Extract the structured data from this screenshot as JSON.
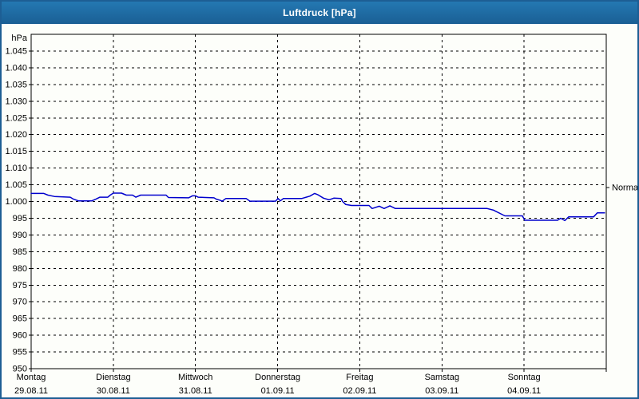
{
  "window": {
    "title": "Luftdruck [hPa]"
  },
  "colors": {
    "titlebar_top": "#2478b2",
    "titlebar_bottom": "#1a5f94",
    "window_border": "#1d5e94",
    "background": "#fdfefa",
    "grid": "#000000",
    "text": "#000000",
    "title_text": "#ffffff",
    "series_line": "#0000cd"
  },
  "chart_data": {
    "type": "line",
    "title": "Luftdruck [hPa]",
    "y_axis": {
      "unit_label": "hPa",
      "axis_min": 950,
      "axis_max": 1050,
      "tick_step": 5,
      "ticks": [
        {
          "value": 1045,
          "label": "1.045"
        },
        {
          "value": 1040,
          "label": "1.040"
        },
        {
          "value": 1035,
          "label": "1.035"
        },
        {
          "value": 1030,
          "label": "1.030"
        },
        {
          "value": 1025,
          "label": "1.025"
        },
        {
          "value": 1020,
          "label": "1.020"
        },
        {
          "value": 1015,
          "label": "1.015"
        },
        {
          "value": 1010,
          "label": "1.010"
        },
        {
          "value": 1005,
          "label": "1.005"
        },
        {
          "value": 1000,
          "label": "1.000"
        },
        {
          "value": 995,
          "label": "995"
        },
        {
          "value": 990,
          "label": "990"
        },
        {
          "value": 985,
          "label": "985"
        },
        {
          "value": 980,
          "label": "980"
        },
        {
          "value": 975,
          "label": "975"
        },
        {
          "value": 970,
          "label": "970"
        },
        {
          "value": 965,
          "label": "965"
        },
        {
          "value": 960,
          "label": "960"
        },
        {
          "value": 955,
          "label": "955"
        },
        {
          "value": 950,
          "label": "950"
        }
      ]
    },
    "x_axis": {
      "total_hours": 168,
      "hours_per_day": 24,
      "day_ticks": [
        {
          "name": "Montag",
          "date": "29.08.11"
        },
        {
          "name": "Dienstag",
          "date": "30.08.11"
        },
        {
          "name": "Mittwoch",
          "date": "31.08.11"
        },
        {
          "name": "Donnerstag",
          "date": "01.09.11"
        },
        {
          "name": "Freitag",
          "date": "02.09.11"
        },
        {
          "name": "Samstag",
          "date": "03.09.11"
        },
        {
          "name": "Sonntag",
          "date": "04.09.11"
        }
      ]
    },
    "normal_marker": {
      "label": "Normal",
      "value": 1004.2
    },
    "grid": {
      "dashed": true,
      "horizontal_step_hpa": 5,
      "vertical_step": "1 day"
    },
    "legend": "none",
    "series": [
      {
        "name": "Luftdruck",
        "color": "#0000cd",
        "points": [
          [
            0.0,
            1002.4
          ],
          [
            3.7,
            1002.4
          ],
          [
            4.9,
            1001.9
          ],
          [
            6.8,
            1001.5
          ],
          [
            11.4,
            1001.3
          ],
          [
            12.4,
            1000.7
          ],
          [
            13.8,
            1000.2
          ],
          [
            17.7,
            1000.2
          ],
          [
            18.9,
            1000.7
          ],
          [
            20.1,
            1001.3
          ],
          [
            22.4,
            1001.3
          ],
          [
            23.1,
            1001.9
          ],
          [
            24.0,
            1002.5
          ],
          [
            26.4,
            1002.5
          ],
          [
            27.8,
            1001.9
          ],
          [
            29.6,
            1001.9
          ],
          [
            30.6,
            1001.3
          ],
          [
            32.0,
            1001.9
          ],
          [
            39.4,
            1001.9
          ],
          [
            40.1,
            1001.2
          ],
          [
            46.0,
            1001.1
          ],
          [
            47.1,
            1001.7
          ],
          [
            48.0,
            1001.7
          ],
          [
            48.8,
            1001.3
          ],
          [
            53.4,
            1001.1
          ],
          [
            54.1,
            1000.7
          ],
          [
            55.1,
            1000.4
          ],
          [
            55.8,
            1000.1
          ],
          [
            56.9,
            1000.9
          ],
          [
            62.8,
            1000.9
          ],
          [
            63.9,
            1000.1
          ],
          [
            71.4,
            1000.1
          ],
          [
            72.1,
            1000.9
          ],
          [
            72.8,
            1000.2
          ],
          [
            73.7,
            1000.9
          ],
          [
            79.1,
            1000.9
          ],
          [
            81.4,
            1001.6
          ],
          [
            82.8,
            1002.4
          ],
          [
            83.8,
            1002.0
          ],
          [
            85.4,
            1001.0
          ],
          [
            87.0,
            1000.5
          ],
          [
            88.4,
            1001.0
          ],
          [
            90.5,
            1000.9
          ],
          [
            91.0,
            1000.0
          ],
          [
            91.9,
            999.1
          ],
          [
            93.6,
            998.8
          ],
          [
            98.7,
            998.8
          ],
          [
            99.6,
            997.9
          ],
          [
            101.7,
            998.6
          ],
          [
            103.1,
            997.9
          ],
          [
            104.8,
            998.7
          ],
          [
            106.4,
            997.9
          ],
          [
            133.2,
            997.9
          ],
          [
            135.1,
            997.4
          ],
          [
            138.4,
            995.7
          ],
          [
            143.5,
            995.7
          ],
          [
            144.2,
            994.4
          ],
          [
            153.8,
            994.4
          ],
          [
            154.7,
            995.0
          ],
          [
            155.9,
            994.3
          ],
          [
            157.0,
            995.4
          ],
          [
            164.3,
            995.4
          ],
          [
            165.4,
            996.6
          ],
          [
            167.5,
            996.6
          ]
        ]
      }
    ]
  }
}
